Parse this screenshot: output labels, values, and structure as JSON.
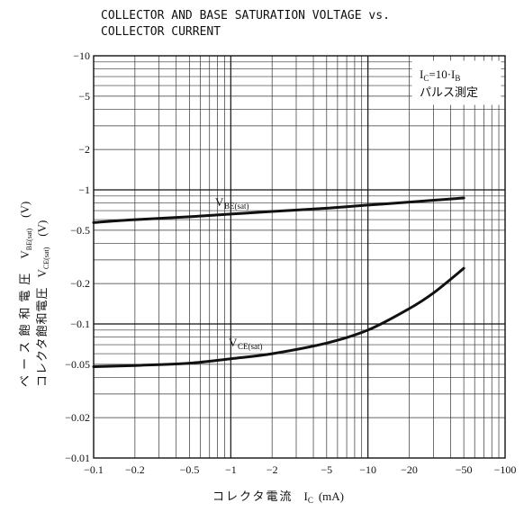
{
  "chart_data": {
    "type": "line",
    "title_lines": [
      "COLLECTOR AND BASE SATURATION VOLTAGE vs.",
      "COLLECTOR CURRENT"
    ],
    "x_scale": "log",
    "y_scale": "log",
    "xlim": [
      0.1,
      100
    ],
    "ylim": [
      0.01,
      10
    ],
    "x_ticks": [
      {
        "value": 0.1,
        "label": "−0.1"
      },
      {
        "value": 0.2,
        "label": "−0.2"
      },
      {
        "value": 0.5,
        "label": "−0.5"
      },
      {
        "value": 1,
        "label": "−1"
      },
      {
        "value": 2,
        "label": "−2"
      },
      {
        "value": 5,
        "label": "−5"
      },
      {
        "value": 10,
        "label": "−10"
      },
      {
        "value": 20,
        "label": "−20"
      },
      {
        "value": 50,
        "label": "−50"
      },
      {
        "value": 100,
        "label": "−100"
      }
    ],
    "y_ticks": [
      {
        "value": 10,
        "label": "−10"
      },
      {
        "value": 5,
        "label": "−5"
      },
      {
        "value": 2,
        "label": "−2"
      },
      {
        "value": 1,
        "label": "−1"
      },
      {
        "value": 0.5,
        "label": "−0.5"
      },
      {
        "value": 0.2,
        "label": "−0.2"
      },
      {
        "value": 0.1,
        "label": "−0.1"
      },
      {
        "value": 0.05,
        "label": "−0.05"
      },
      {
        "value": 0.02,
        "label": "−0.02"
      },
      {
        "value": 0.01,
        "label": "−0.01"
      }
    ],
    "xlabel": {
      "text": "コレクタ電流",
      "symbol": "I",
      "symbol_sub": "C",
      "unit": "(mA)"
    },
    "ylabel": {
      "line1": {
        "text": "ベース飽和電圧",
        "symbol": "V",
        "symbol_sub": "BE(sat)",
        "unit": "(V)"
      },
      "line2": {
        "text": "コレクタ飽和電圧",
        "symbol": "V",
        "symbol_sub": "CE(sat)",
        "unit": "(V)"
      }
    },
    "condition_note": {
      "line1_main": "I",
      "line1_sub": "C",
      "line1_rest": "=10·I",
      "line1_sub2": "B",
      "line2": "パルス測定"
    },
    "grid": true,
    "series": [
      {
        "name": "V",
        "name_sub": "BE(sat)",
        "x": [
          0.1,
          0.2,
          0.5,
          1,
          2,
          5,
          10,
          20,
          50
        ],
        "y": [
          0.57,
          0.6,
          0.63,
          0.66,
          0.69,
          0.73,
          0.77,
          0.81,
          0.87
        ]
      },
      {
        "name": "V",
        "name_sub": "CE(sat)",
        "x": [
          0.1,
          0.2,
          0.5,
          1,
          2,
          5,
          10,
          20,
          30,
          50
        ],
        "y": [
          0.048,
          0.049,
          0.051,
          0.055,
          0.06,
          0.072,
          0.09,
          0.13,
          0.17,
          0.26
        ]
      }
    ]
  }
}
